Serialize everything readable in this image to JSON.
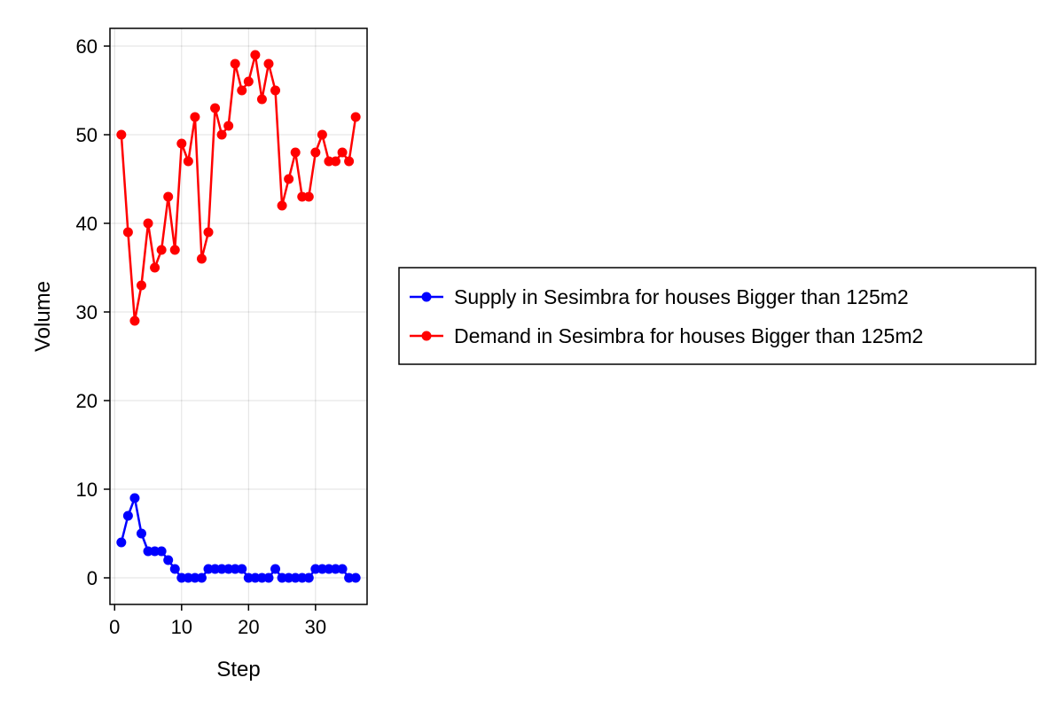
{
  "chart_data": {
    "type": "line",
    "xlabel": "Step",
    "ylabel": "Volume",
    "xlim": [
      -0.7,
      37.7
    ],
    "ylim": [
      -3,
      62
    ],
    "x_ticks": [
      0,
      10,
      20,
      30
    ],
    "y_ticks": [
      0,
      10,
      20,
      30,
      40,
      50,
      60
    ],
    "grid": true,
    "legend_position": "right",
    "x": [
      1,
      2,
      3,
      4,
      5,
      6,
      7,
      8,
      9,
      10,
      11,
      12,
      13,
      14,
      15,
      16,
      17,
      18,
      19,
      20,
      21,
      22,
      23,
      24,
      25,
      26,
      27,
      28,
      29,
      30,
      31,
      32,
      33,
      34,
      35,
      36
    ],
    "series": [
      {
        "name": "Supply in Sesimbra for houses Bigger than 125m2",
        "color": "#0000ff",
        "values": [
          4,
          7,
          9,
          5,
          3,
          3,
          3,
          2,
          1,
          0,
          0,
          0,
          0,
          1,
          1,
          1,
          1,
          1,
          1,
          0,
          0,
          0,
          0,
          1,
          0,
          0,
          0,
          0,
          0,
          1,
          1,
          1,
          1,
          1,
          0,
          0
        ]
      },
      {
        "name": "Demand in Sesimbra for houses Bigger than 125m2",
        "color": "#ff0000",
        "values": [
          50,
          39,
          29,
          33,
          40,
          35,
          37,
          43,
          37,
          49,
          47,
          52,
          36,
          39,
          53,
          50,
          51,
          58,
          55,
          56,
          59,
          54,
          58,
          55,
          42,
          45,
          48,
          43,
          43,
          48,
          50,
          47,
          47,
          48,
          47,
          52
        ]
      }
    ]
  }
}
